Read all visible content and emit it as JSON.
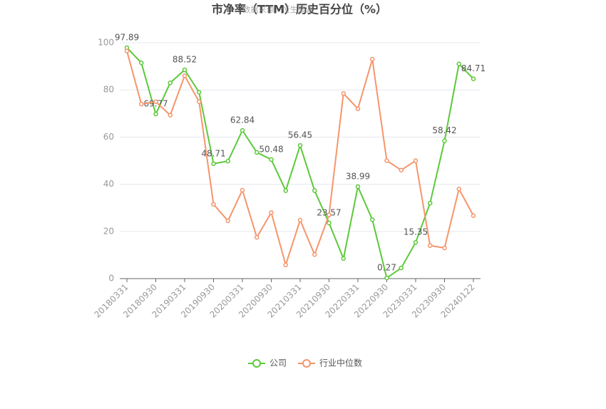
{
  "chart_data": {
    "type": "line",
    "title": "市净率（TTM）历史百分位（%）",
    "source": "数据来源：恒生聚源",
    "categories": [
      "20180331",
      null,
      "20180930",
      null,
      "20190331",
      null,
      "20190930",
      null,
      "20200331",
      null,
      "20200930",
      null,
      "20210331",
      null,
      "20210930",
      null,
      "20220331",
      null,
      "20220930",
      null,
      "20230331",
      null,
      "20230930",
      null,
      "20240122"
    ],
    "series": [
      {
        "name": "公司",
        "color": "#5cc93a",
        "values": [
          97.89,
          91.5,
          69.77,
          83,
          88.52,
          79,
          48.71,
          49.8,
          62.84,
          53.5,
          50.48,
          37.3,
          56.45,
          37.3,
          23.57,
          8.5,
          38.99,
          25,
          0.27,
          4.5,
          15.35,
          32,
          58.42,
          91,
          84.71
        ],
        "value_labels": [
          "97.89",
          null,
          "69.77",
          null,
          "88.52",
          null,
          "48.71",
          null,
          "62.84",
          null,
          "50.48",
          null,
          "56.45",
          null,
          "23.57",
          null,
          "38.99",
          null,
          "0.27",
          null,
          "15.35",
          null,
          "58.42",
          null,
          "84.71"
        ]
      },
      {
        "name": "行业中位数",
        "color": "#f5956b",
        "values": [
          96.5,
          74,
          75,
          69.3,
          86,
          75,
          31.5,
          24.5,
          37.5,
          17.5,
          28,
          5.8,
          24.8,
          10.2,
          27,
          78.5,
          72,
          93,
          50,
          46,
          50,
          14,
          13,
          38,
          26.7
        ]
      }
    ],
    "ylim": [
      0,
      100
    ],
    "yticks": [
      0,
      20,
      40,
      60,
      80,
      100
    ],
    "grid": true,
    "legend": "bottom"
  }
}
